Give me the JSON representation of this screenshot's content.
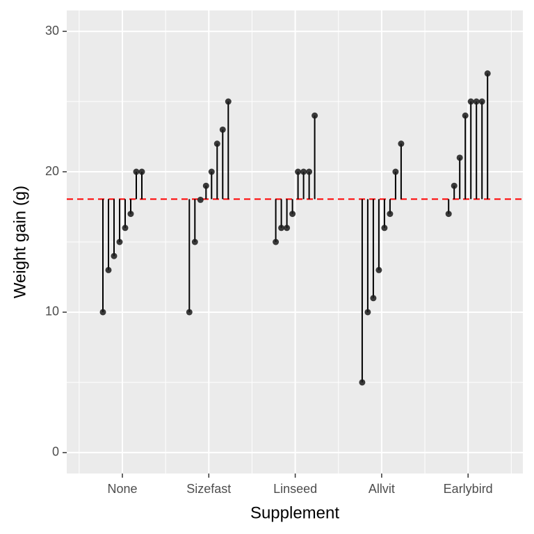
{
  "chart_data": {
    "type": "lollipop",
    "x_label": "Supplement",
    "y_label": "Weight gain (g)",
    "categories": [
      "None",
      "Sizefast",
      "Linseed",
      "Allvit",
      "Earlybird"
    ],
    "values": [
      [
        10,
        13,
        14,
        15,
        16,
        17,
        20,
        20
      ],
      [
        10,
        15,
        18,
        19,
        20,
        22,
        23,
        25
      ],
      [
        15,
        16,
        16,
        17,
        20,
        20,
        20,
        24
      ],
      [
        5,
        10,
        11,
        13,
        16,
        17,
        20,
        22
      ],
      [
        17,
        19,
        21,
        24,
        25,
        25,
        25,
        27
      ]
    ],
    "reference_line": 18.05,
    "reference_color": "#ff0000",
    "point_color": "#1a1a1a",
    "segment_color": "#000000",
    "ylim": [
      -1.49,
      31.49
    ],
    "yticks": [
      0,
      10,
      20,
      30
    ],
    "y_minor_ticks": [
      5,
      15,
      25
    ],
    "grid": true
  }
}
